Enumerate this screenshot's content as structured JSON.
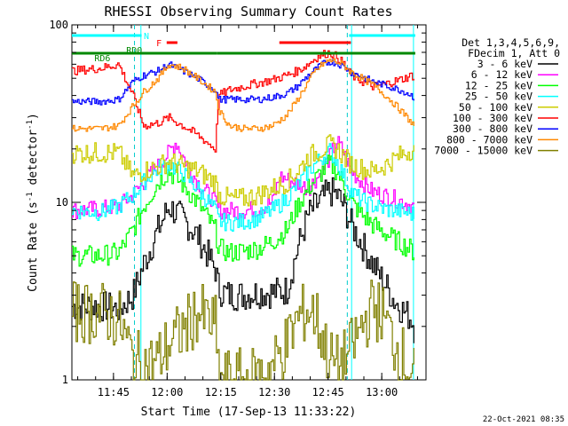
{
  "chart_data": {
    "type": "line",
    "title": "RHESSI Observing Summary Count Rates",
    "xlabel": "Start Time (17-Sep-13 11:33:22)",
    "ylabel_main": "Count Rate (s",
    "ylabel_sup": "-1",
    "ylabel_end": " detector",
    "ylabel_close": ")",
    "yscale": "log",
    "ylim": [
      1,
      100
    ],
    "xlim_minutes_after_start": [
      0,
      99
    ],
    "x_start": "11:33:22",
    "x_ticks": [
      {
        "label": "11:45",
        "min": 11.63
      },
      {
        "label": "12:00",
        "min": 26.63
      },
      {
        "label": "12:15",
        "min": 41.63
      },
      {
        "label": "12:30",
        "min": 56.63
      },
      {
        "label": "12:45",
        "min": 71.63
      },
      {
        "label": "13:00",
        "min": 86.63
      }
    ],
    "y_ticks": [
      {
        "label": "1",
        "value": 1
      },
      {
        "label": "10",
        "value": 10
      },
      {
        "label": "100",
        "value": 100
      }
    ],
    "legend_header": [
      "Det 1,3,4,5,6,9,",
      "FDecim 1, Att 0"
    ],
    "legend_position": "right",
    "series": [
      {
        "name": "3 - 6 keV",
        "color": "#000000",
        "x": [
          0,
          8,
          13,
          17,
          20,
          24,
          27,
          31,
          35,
          40,
          41,
          44,
          48,
          52,
          56,
          60,
          63,
          66,
          68,
          70,
          72,
          74,
          76,
          78,
          81,
          84,
          87,
          90,
          93,
          95,
          96
        ],
        "y": [
          2.6,
          2.6,
          2.5,
          3.0,
          4.5,
          7.0,
          9.5,
          8.0,
          6.5,
          4.2,
          3.2,
          3.0,
          3.0,
          3.1,
          3.1,
          3.2,
          5.5,
          8.5,
          9.5,
          10.5,
          11.5,
          11.0,
          9.5,
          7.5,
          5.8,
          4.5,
          3.6,
          2.8,
          2.4,
          2.2,
          1.8
        ]
      },
      {
        "name": "6 - 12 keV",
        "color": "#ff00ff",
        "x": [
          0,
          8,
          13,
          17,
          20,
          24,
          27,
          29,
          31,
          35,
          40,
          41,
          44,
          48,
          52,
          56,
          58,
          62,
          66,
          70,
          72,
          74,
          76,
          78,
          81,
          84,
          87,
          90,
          93,
          95,
          96
        ],
        "y": [
          9.0,
          9.2,
          9.5,
          11,
          13,
          16,
          19,
          22,
          18,
          13,
          10,
          9,
          9,
          9,
          9.2,
          10,
          14,
          13,
          12,
          15,
          18,
          22,
          19,
          15,
          13,
          11.5,
          11,
          10.5,
          10,
          9.5,
          9.2
        ]
      },
      {
        "name": "12 - 25 keV",
        "color": "#00ff00",
        "x": [
          0,
          8,
          13,
          17,
          20,
          24,
          27,
          31,
          35,
          40,
          41,
          44,
          48,
          52,
          56,
          60,
          63,
          66,
          68,
          70,
          72,
          74,
          76,
          78,
          81,
          84,
          87,
          90,
          93,
          95,
          96
        ],
        "y": [
          5.0,
          5.0,
          5.2,
          7.0,
          9.5,
          13,
          15,
          12.5,
          10,
          7,
          5.5,
          5.2,
          5.3,
          5.5,
          6.0,
          7,
          9.5,
          12,
          13.5,
          15,
          16.5,
          15,
          12.5,
          10,
          8.5,
          7.5,
          6.8,
          6.2,
          5.7,
          5.4,
          5.0
        ]
      },
      {
        "name": "25 - 50 keV",
        "color": "#00ffff",
        "x": [
          0,
          8,
          13,
          17,
          20,
          24,
          27,
          31,
          35,
          40,
          41,
          44,
          48,
          52,
          56,
          60,
          63,
          66,
          68,
          70,
          72,
          74,
          76,
          78,
          81,
          84,
          87,
          90,
          93,
          95,
          96
        ],
        "y": [
          9.0,
          8.8,
          9.5,
          11,
          13,
          15.5,
          16.5,
          14.5,
          12,
          9,
          7.8,
          7.7,
          7.8,
          8.2,
          9,
          10.5,
          12.5,
          15,
          16.5,
          18,
          19.5,
          17,
          14,
          11.5,
          10.2,
          9.6,
          9.2,
          9.0,
          8.8,
          8.6,
          8.5
        ]
      },
      {
        "name": "50 - 100 keV",
        "color": "#cccc00",
        "x": [
          0,
          8,
          13,
          17,
          20,
          24,
          27,
          31,
          35,
          40,
          41,
          44,
          48,
          52,
          56,
          60,
          63,
          66,
          68,
          70,
          72,
          74,
          76,
          78,
          81,
          84,
          87,
          90,
          93,
          95,
          96
        ],
        "y": [
          19,
          19,
          19,
          14,
          15,
          16,
          17,
          16,
          15,
          13,
          11,
          10.5,
          10.5,
          11,
          12,
          13,
          15,
          18,
          19,
          20,
          21,
          20,
          18,
          16.5,
          15.5,
          15,
          16,
          17.5,
          19,
          20,
          19
        ]
      },
      {
        "name": "100 - 300 keV",
        "color": "#ff0000",
        "x": [
          0,
          8,
          13,
          17,
          20,
          24,
          27,
          31,
          35,
          40,
          41,
          44,
          48,
          52,
          56,
          60,
          63,
          66,
          68,
          70,
          72,
          74,
          76,
          78,
          81,
          84,
          87,
          90,
          93,
          95,
          96
        ],
        "y": [
          55,
          57,
          60,
          40,
          27,
          28,
          30,
          27,
          24,
          20,
          40,
          43,
          45,
          47,
          49,
          52,
          55,
          60,
          65,
          68,
          70,
          66,
          60,
          52,
          48,
          45,
          46,
          48,
          50,
          52,
          50
        ]
      },
      {
        "name": "300 - 800 keV",
        "color": "#0000ff",
        "x": [
          0,
          8,
          13,
          17,
          20,
          24,
          27,
          31,
          35,
          40,
          41,
          44,
          48,
          52,
          56,
          60,
          63,
          66,
          68,
          70,
          72,
          74,
          76,
          78,
          81,
          84,
          87,
          90,
          93,
          95,
          96
        ],
        "y": [
          37,
          37,
          38,
          48,
          52,
          55,
          60,
          55,
          50,
          43,
          38,
          38,
          38,
          38,
          39,
          41,
          45,
          52,
          56,
          60,
          62,
          61,
          58,
          54,
          51,
          48,
          46,
          44,
          42,
          40,
          38
        ]
      },
      {
        "name": "800 - 7000 keV",
        "color": "#ff8800",
        "x": [
          0,
          8,
          13,
          17,
          20,
          24,
          27,
          31,
          35,
          40,
          41,
          44,
          48,
          52,
          56,
          60,
          63,
          66,
          68,
          70,
          72,
          74,
          76,
          78,
          81,
          84,
          87,
          90,
          93,
          95,
          96
        ],
        "y": [
          26,
          26,
          27,
          35,
          42,
          50,
          60,
          57,
          50,
          42,
          33,
          27,
          26,
          26,
          27,
          31,
          38,
          48,
          55,
          60,
          63,
          62,
          59,
          54,
          50,
          46,
          41,
          36,
          31,
          28,
          26
        ]
      },
      {
        "name": "7000 - 15000 keV",
        "color": "#808000",
        "x": [
          0,
          8,
          13,
          17,
          20,
          24,
          27,
          31,
          35,
          40,
          41,
          44,
          48,
          52,
          56,
          60,
          63,
          66,
          68,
          70,
          72,
          74,
          76,
          78,
          81,
          84,
          87,
          90,
          93,
          95,
          96
        ],
        "y": [
          2.4,
          2.4,
          2.2,
          1.3,
          1.2,
          1.3,
          1.6,
          1.9,
          2.4,
          2.0,
          1.0,
          1.0,
          1.0,
          1.05,
          1.2,
          1.6,
          2.2,
          2.5,
          2.3,
          1.7,
          1.3,
          1.2,
          1.3,
          1.5,
          2.0,
          2.6,
          2.3,
          1.6,
          1.3,
          1.1,
          1.0
        ]
      }
    ],
    "annotations": {
      "N": {
        "label": "N",
        "color": "#00ffff",
        "segments": [
          [
            0,
            19.5
          ],
          [
            77.5,
            96
          ]
        ]
      },
      "F": {
        "label": "F",
        "color": "#ff0000",
        "segments": [
          [
            26.5,
            29.5
          ],
          [
            58,
            78
          ]
        ]
      },
      "RD6": {
        "label": "RD6",
        "color": "#008800",
        "segments": [
          [
            0,
            18
          ],
          [
            40.5,
            96
          ]
        ]
      },
      "RD0": {
        "label": "RD0",
        "color": "#008800",
        "segments": [
          [
            18,
            40.5
          ]
        ]
      }
    },
    "saa_lines": [
      19.3,
      78.2,
      95.5
    ],
    "night_lines": [
      17.5,
      77
    ]
  },
  "timestamp": "22-Oct-2021 08:35"
}
